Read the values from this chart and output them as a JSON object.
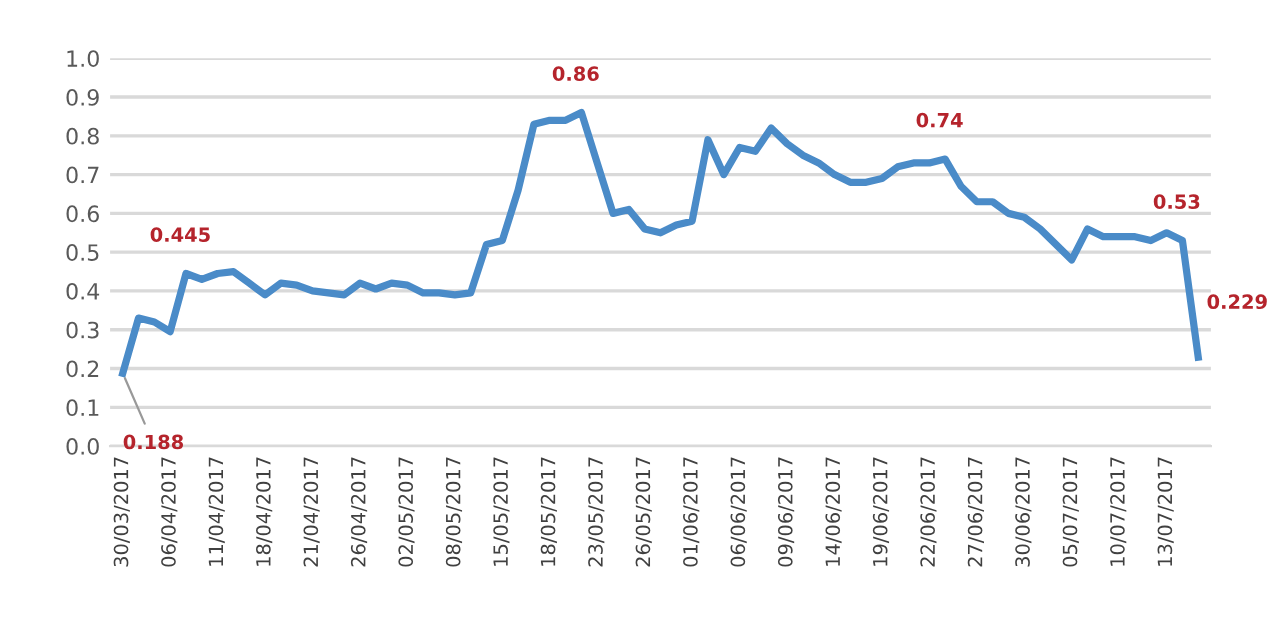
{
  "chart_data": {
    "type": "line",
    "categories": [
      "30/03/2017",
      null,
      null,
      "06/04/2017",
      null,
      null,
      "11/04/2017",
      null,
      null,
      "18/04/2017",
      null,
      null,
      "21/04/2017",
      null,
      null,
      "26/04/2017",
      null,
      null,
      "02/05/2017",
      null,
      null,
      "08/05/2017",
      null,
      null,
      "15/05/2017",
      null,
      null,
      "18/05/2017",
      null,
      null,
      "23/05/2017",
      null,
      null,
      "26/05/2017",
      null,
      null,
      "01/06/2017",
      null,
      null,
      "06/06/2017",
      null,
      null,
      "09/06/2017",
      null,
      null,
      "14/06/2017",
      null,
      null,
      "19/06/2017",
      null,
      null,
      "22/06/2017",
      null,
      null,
      "27/06/2017",
      null,
      null,
      "30/06/2017",
      null,
      null,
      "05/07/2017",
      null,
      null,
      "10/07/2017",
      null,
      null,
      "13/07/2017",
      null,
      null
    ],
    "series": [
      {
        "color": "#4a8bc8",
        "values": [
          0.188,
          0.33,
          0.32,
          0.295,
          0.445,
          0.43,
          0.445,
          0.45,
          0.42,
          0.39,
          0.42,
          0.415,
          0.4,
          0.395,
          0.39,
          0.42,
          0.405,
          0.42,
          0.415,
          0.395,
          0.395,
          0.39,
          0.395,
          0.52,
          0.53,
          0.66,
          0.83,
          0.84,
          0.84,
          0.86,
          0.73,
          0.6,
          0.61,
          0.56,
          0.55,
          0.57,
          0.58,
          0.79,
          0.7,
          0.77,
          0.76,
          0.82,
          0.78,
          0.75,
          0.73,
          0.7,
          0.68,
          0.68,
          0.69,
          0.72,
          0.73,
          0.73,
          0.74,
          0.67,
          0.63,
          0.63,
          0.6,
          0.59,
          0.56,
          0.52,
          0.48,
          0.56,
          0.54,
          0.54,
          0.54,
          0.53,
          0.55,
          0.53,
          0.229
        ],
        "value_labels": [
          "0.188",
          null,
          null,
          null,
          "0.445",
          null,
          null,
          null,
          null,
          null,
          null,
          null,
          null,
          null,
          null,
          null,
          null,
          null,
          null,
          null,
          null,
          null,
          null,
          null,
          null,
          null,
          null,
          null,
          null,
          "0.86",
          null,
          null,
          null,
          null,
          null,
          null,
          null,
          null,
          null,
          null,
          null,
          null,
          null,
          null,
          null,
          null,
          null,
          null,
          null,
          null,
          null,
          null,
          "0.74",
          null,
          null,
          null,
          null,
          null,
          null,
          null,
          null,
          null,
          null,
          null,
          null,
          null,
          null,
          "0.53",
          "0.229"
        ]
      }
    ],
    "ylim": [
      0,
      1
    ],
    "yticks": [
      {
        "value": 0,
        "label": "0.0"
      },
      {
        "value": 0.1,
        "label": "0.1"
      },
      {
        "value": 0.2,
        "label": "0.2"
      },
      {
        "value": 0.3,
        "label": "0.3"
      },
      {
        "value": 0.4,
        "label": "0.4"
      },
      {
        "value": 0.5,
        "label": "0.5"
      },
      {
        "value": 0.6,
        "label": "0.6"
      },
      {
        "value": 0.7,
        "label": "0.7"
      },
      {
        "value": 0.8,
        "label": "0.8"
      },
      {
        "value": 0.9,
        "label": "0.9"
      },
      {
        "value": 1.0,
        "label": "1.0"
      }
    ],
    "grid": "y",
    "marker": "none",
    "line_style": "solid"
  }
}
